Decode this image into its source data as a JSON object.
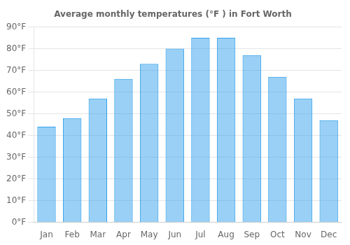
{
  "chart_data": {
    "type": "bar",
    "title": "Average monthly temperatures (°F ) in Fort Worth",
    "categories": [
      "Jan",
      "Feb",
      "Mar",
      "Apr",
      "May",
      "Jun",
      "Jul",
      "Aug",
      "Sep",
      "Oct",
      "Nov",
      "Dec"
    ],
    "values": [
      44,
      48,
      57,
      66,
      73,
      80,
      85,
      85,
      77,
      67,
      57,
      47
    ],
    "ylim": [
      0,
      90
    ],
    "yticks": [
      {
        "value": 0,
        "label": "0°F"
      },
      {
        "value": 10,
        "label": "10°F"
      },
      {
        "value": 20,
        "label": "20°F"
      },
      {
        "value": 30,
        "label": "30°F"
      },
      {
        "value": 40,
        "label": "40°F"
      },
      {
        "value": 50,
        "label": "50°F"
      },
      {
        "value": 60,
        "label": "60°F"
      },
      {
        "value": 70,
        "label": "70°F"
      },
      {
        "value": 80,
        "label": "80°F"
      },
      {
        "value": 90,
        "label": "90°F"
      }
    ],
    "grid": true
  }
}
